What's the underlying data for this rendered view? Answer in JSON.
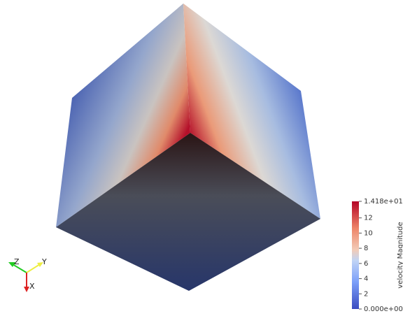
{
  "color_bar": {
    "title": "velocity Magnitude",
    "range": [
      0,
      14.18
    ],
    "ticks": [
      {
        "value": 14.18,
        "label": "1.418e+01"
      },
      12,
      10,
      8,
      6,
      4,
      2,
      {
        "value": 0,
        "label": "0.000e+00"
      }
    ]
  },
  "axes_triad": {
    "labels": [
      "Z",
      "Y",
      "X"
    ]
  }
}
